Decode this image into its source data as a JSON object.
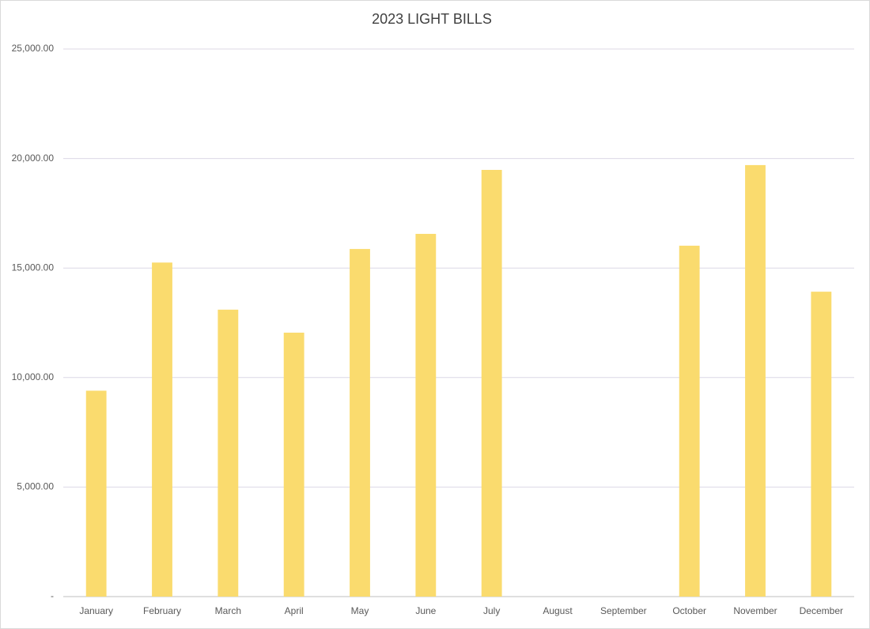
{
  "chart_data": {
    "type": "bar",
    "title": "2023 LIGHT BILLS",
    "categories": [
      "January",
      "February",
      "March",
      "April",
      "May",
      "June",
      "July",
      "August",
      "September",
      "October",
      "November",
      "December"
    ],
    "values": [
      9400,
      15250,
      13100,
      12050,
      15870,
      16560,
      19480,
      null,
      null,
      16020,
      19700,
      13920
    ],
    "color": "#fadb6e",
    "ylim": [
      0,
      25000
    ],
    "yticks": [
      {
        "value": 0,
        "label": "-"
      },
      {
        "value": 5000,
        "label": "5,000.00"
      },
      {
        "value": 10000,
        "label": "10,000.00"
      },
      {
        "value": 15000,
        "label": "15,000.00"
      },
      {
        "value": 20000,
        "label": "20,000.00"
      },
      {
        "value": 25000,
        "label": "25,000.00"
      }
    ],
    "grid": true
  }
}
